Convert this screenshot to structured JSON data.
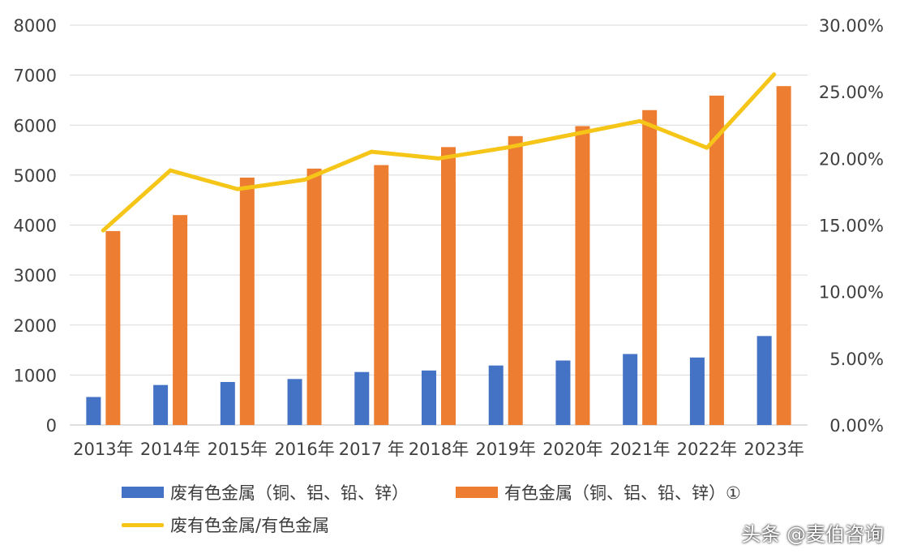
{
  "chart_data": {
    "type": "bar",
    "categories": [
      "2013年",
      "2014年",
      "2015年",
      "2016年",
      "2017 年",
      "2018年",
      "2019年",
      "2020年",
      "2021年",
      "2022年",
      "2023年"
    ],
    "series": [
      {
        "name": "废有色金属（铜、铝、铅、锌）",
        "type": "bar",
        "axis": "left",
        "color": "#4472C4",
        "values": [
          560,
          800,
          860,
          920,
          1060,
          1090,
          1190,
          1290,
          1420,
          1350,
          1780
        ]
      },
      {
        "name": "有色金属（铜、铝、铅、锌）①",
        "type": "bar",
        "axis": "left",
        "color": "#ED7D31",
        "values": [
          3880,
          4200,
          4950,
          5130,
          5200,
          5560,
          5780,
          5980,
          6300,
          6590,
          6780
        ]
      },
      {
        "name": "废有色金属/有色金属",
        "type": "line",
        "axis": "right",
        "color": "#F5C518",
        "values": [
          14.6,
          19.1,
          17.7,
          18.4,
          20.5,
          20.0,
          20.8,
          21.8,
          22.8,
          20.8,
          26.3
        ]
      }
    ],
    "yaxis_left": {
      "min": 0,
      "max": 8000,
      "ticks": [
        "0",
        "1000",
        "2000",
        "3000",
        "4000",
        "5000",
        "6000",
        "7000",
        "8000"
      ]
    },
    "yaxis_right": {
      "min": 0,
      "max": 30,
      "ticks": [
        "0.00%",
        "5.00%",
        "10.00%",
        "15.00%",
        "20.00%",
        "25.00%",
        "30.00%"
      ]
    },
    "grid": true,
    "legend_position": "bottom"
  },
  "legend": {
    "item1": "废有色金属（铜、铝、铅、锌）",
    "item2": "有色金属（铜、铝、铅、锌）①",
    "item3": "废有色金属/有色金属"
  },
  "watermark": "头条 @麦伯咨询",
  "colors": {
    "bar_blue": "#4472C4",
    "bar_orange": "#ED7D31",
    "line_yellow": "#F5C518",
    "grid": "#d9d9d9",
    "text": "#404040"
  }
}
